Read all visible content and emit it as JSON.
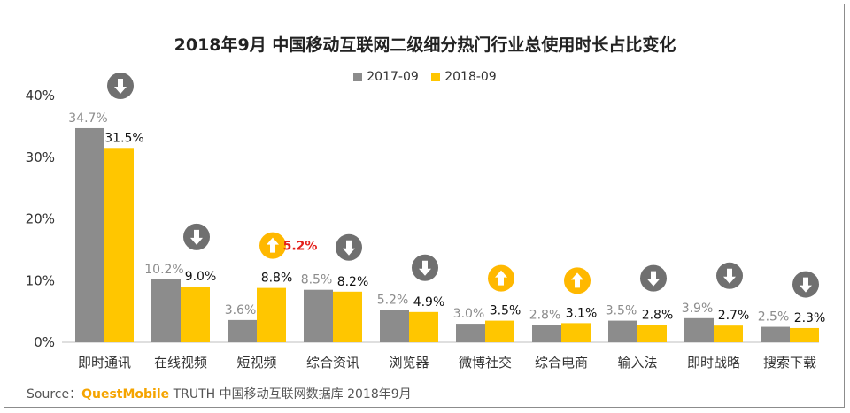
{
  "title": "2018年9月 中国移动互联网二级细分热门行业总使用时长占比变化",
  "legend": [
    "2017-09",
    "2018-09"
  ],
  "colors": {
    "s2017": "#8c8c8c",
    "s2018": "#ffc600",
    "down": "#707070",
    "up": "#ffb800",
    "highlight": "#e3201b"
  },
  "chart_data": {
    "type": "bar",
    "categories": [
      "即时通讯",
      "在线视频",
      "短视频",
      "综合资讯",
      "浏览器",
      "微博社交",
      "综合电商",
      "输入法",
      "即时战略",
      "搜索下载"
    ],
    "series": [
      {
        "name": "2017-09",
        "values": [
          34.7,
          10.2,
          3.6,
          8.5,
          5.2,
          3.0,
          2.8,
          3.5,
          3.9,
          2.5
        ]
      },
      {
        "name": "2018-09",
        "values": [
          31.5,
          9.0,
          8.8,
          8.2,
          4.9,
          3.5,
          3.1,
          2.8,
          2.7,
          2.3
        ]
      }
    ],
    "value_labels": [
      [
        "34.7%",
        "10.2%",
        "3.6%",
        "8.5%",
        "5.2%",
        "3.0%",
        "2.8%",
        "3.5%",
        "3.9%",
        "2.5%"
      ],
      [
        "31.5%",
        "9.0%",
        "8.8%",
        "8.2%",
        "4.9%",
        "3.5%",
        "3.1%",
        "2.8%",
        "2.7%",
        "2.3%"
      ]
    ],
    "trend": [
      "down",
      "down",
      "up",
      "down",
      "down",
      "up",
      "up",
      "down",
      "down",
      "down"
    ],
    "annotation": {
      "category": "短视频",
      "text": "5.2%"
    },
    "y_ticks": [
      "0%",
      "10%",
      "20%",
      "30%",
      "40%"
    ],
    "ylim": [
      0,
      40
    ],
    "grid": false,
    "legend_position": "top-center"
  },
  "source": {
    "prefix": "Source：",
    "brand": "QuestMobile",
    "text": " TRUTH 中国移动互联网数据库 2018年9月"
  }
}
